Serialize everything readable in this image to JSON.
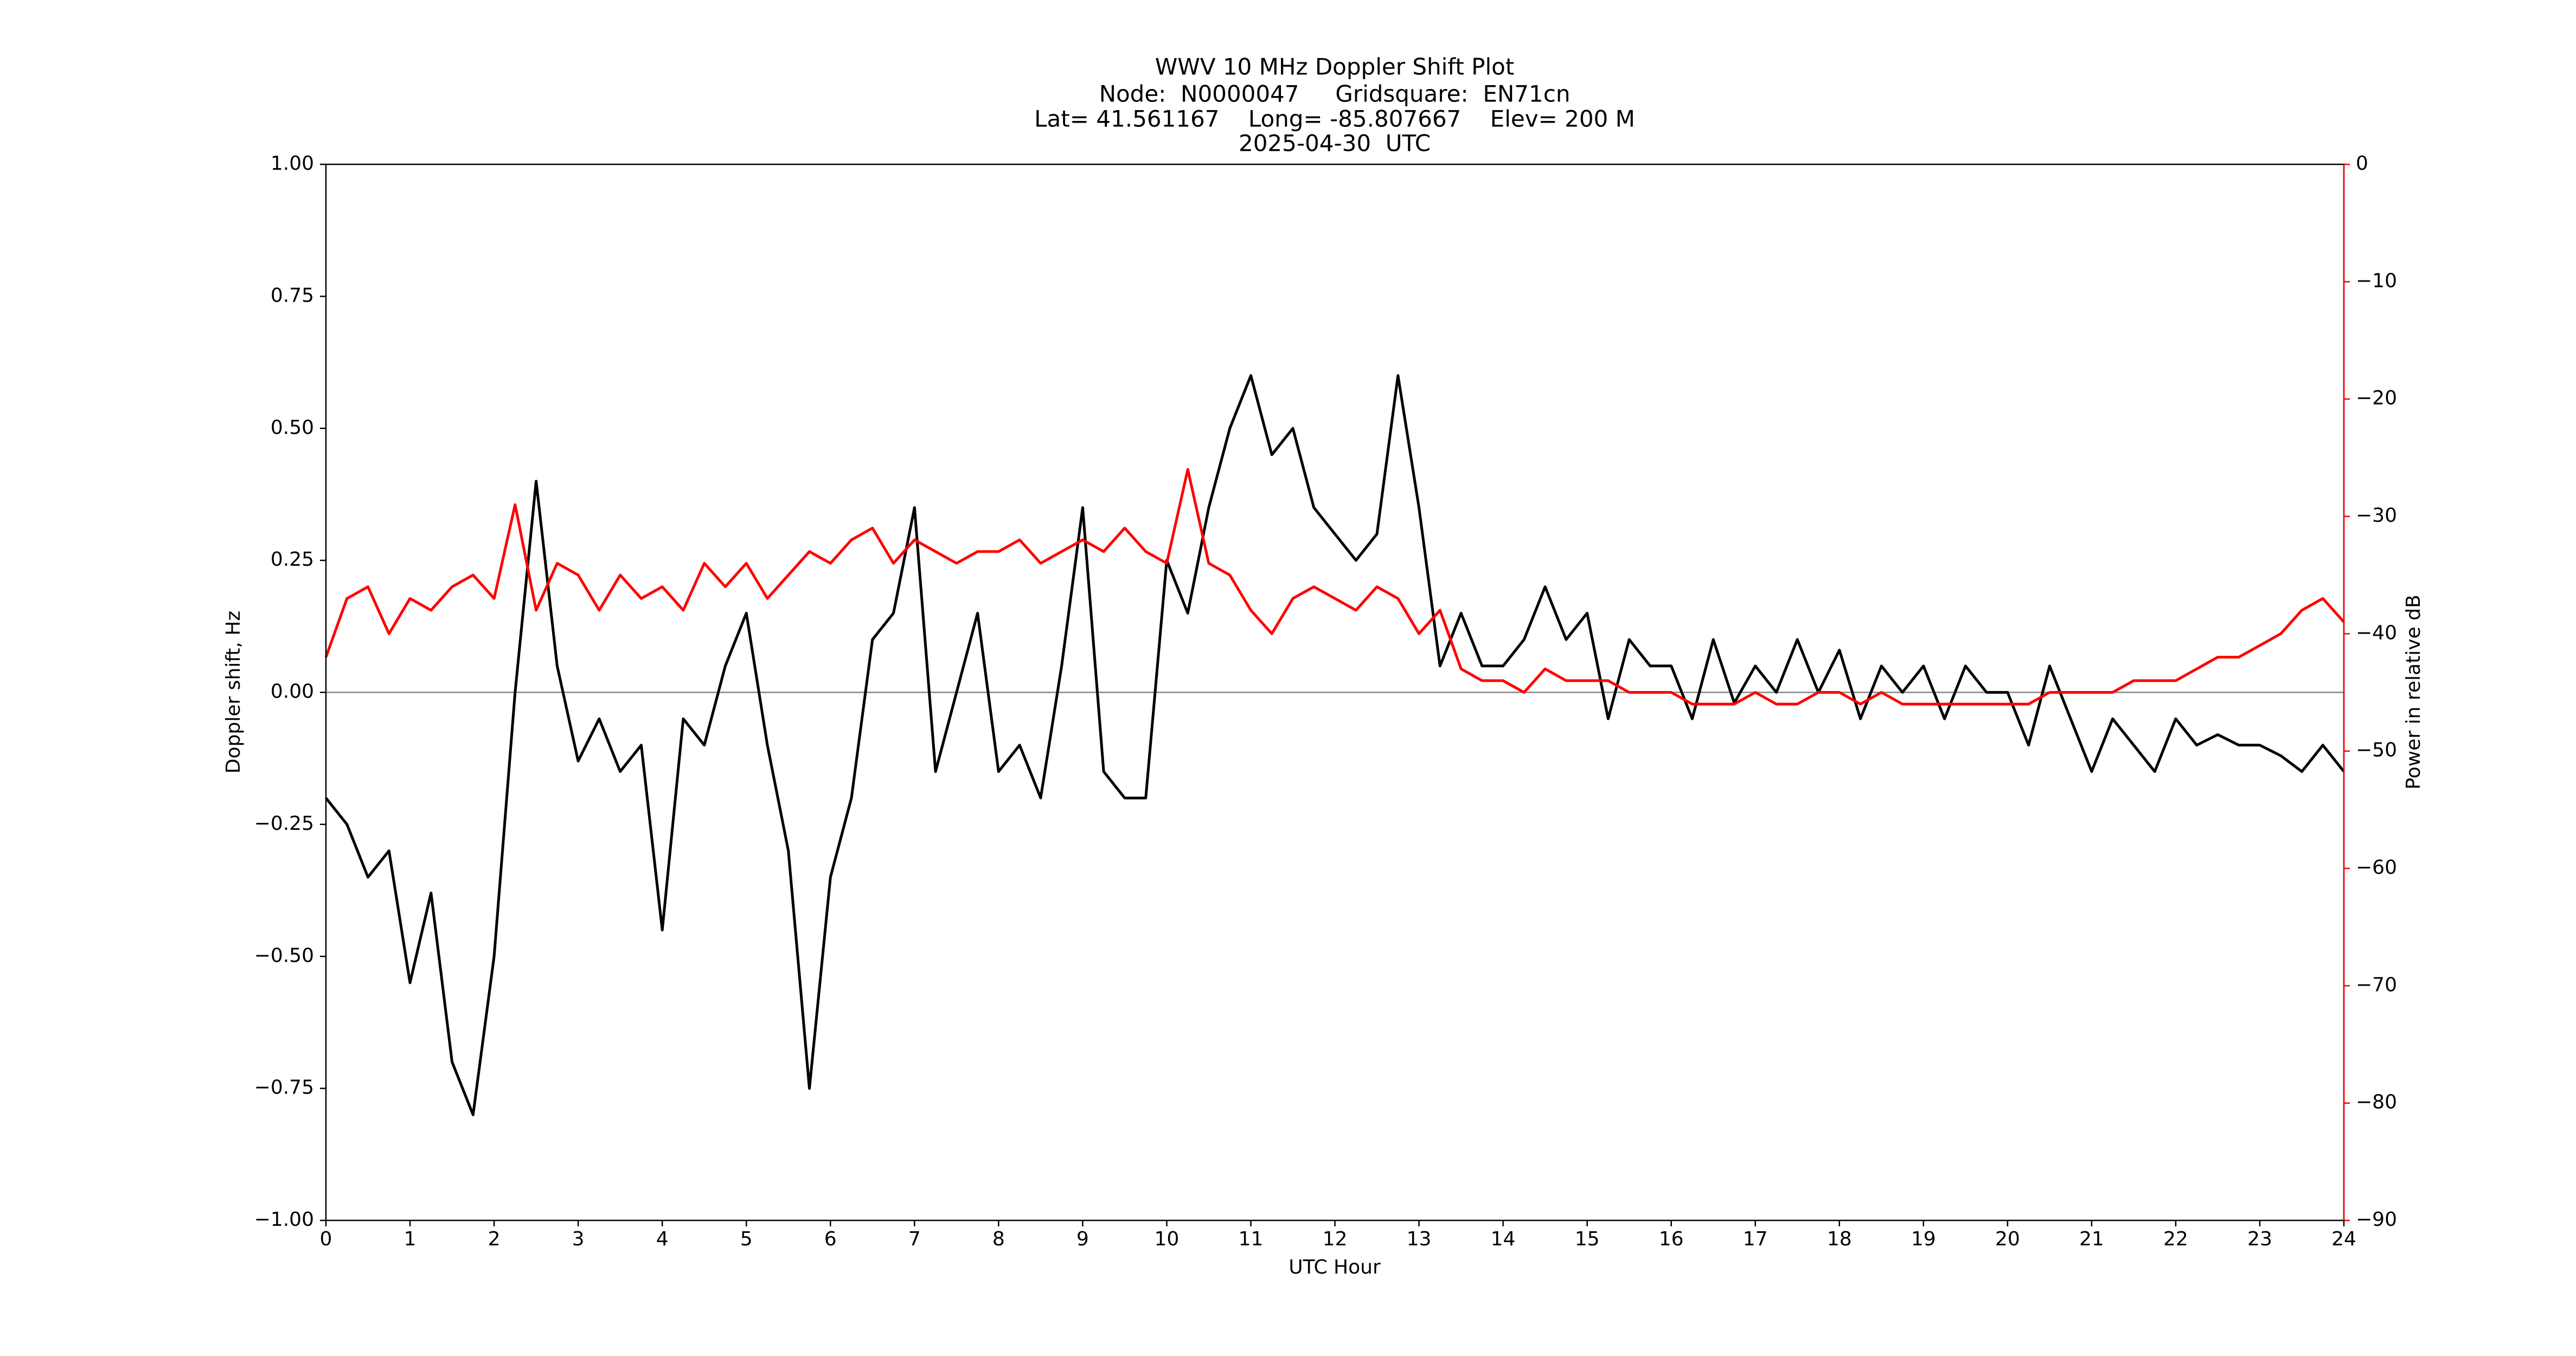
{
  "chart_data": {
    "type": "line",
    "title": "WWV 10 MHz Doppler Shift Plot",
    "subtitle": [
      "Node:  N0000047     Gridsquare:  EN71cn",
      "Lat= 41.561167    Long= -85.807667    Elev= 200 M",
      "2025-04-30  UTC"
    ],
    "x_label": "UTC Hour",
    "y_label": "Doppler shift, Hz",
    "y2_label": "Power in relative dB",
    "y2_color": "#ff0000",
    "x": [
      0,
      0.25,
      0.5,
      0.75,
      1,
      1.25,
      1.5,
      1.75,
      2,
      2.25,
      2.5,
      2.75,
      3,
      3.25,
      3.5,
      3.75,
      4,
      4.25,
      4.5,
      4.75,
      5,
      5.25,
      5.5,
      5.75,
      6,
      6.25,
      6.5,
      6.75,
      7,
      7.25,
      7.5,
      7.75,
      8,
      8.25,
      8.5,
      8.75,
      9,
      9.25,
      9.5,
      9.75,
      10,
      10.25,
      10.5,
      10.75,
      11,
      11.25,
      11.5,
      11.75,
      12,
      12.25,
      12.5,
      12.75,
      13,
      13.25,
      13.5,
      13.75,
      14,
      14.25,
      14.5,
      14.75,
      15,
      15.25,
      15.5,
      15.75,
      16,
      16.25,
      16.5,
      16.75,
      17,
      17.25,
      17.5,
      17.75,
      18,
      18.25,
      18.5,
      18.75,
      19,
      19.25,
      19.5,
      19.75,
      20,
      20.25,
      20.5,
      20.75,
      21,
      21.25,
      21.5,
      21.75,
      22,
      22.25,
      22.5,
      22.75,
      23,
      23.25,
      23.5,
      23.75,
      24
    ],
    "series": [
      {
        "color": "#000000",
        "values": [
          -0.2,
          -0.25,
          -0.35,
          -0.3,
          -0.55,
          -0.38,
          -0.7,
          -0.8,
          -0.5,
          0.0,
          0.4,
          0.05,
          -0.13,
          -0.05,
          -0.15,
          -0.1,
          -0.45,
          -0.05,
          -0.1,
          0.05,
          0.15,
          -0.1,
          -0.3,
          -0.75,
          -0.35,
          -0.2,
          0.1,
          0.15,
          0.35,
          -0.15,
          0.0,
          0.15,
          -0.15,
          -0.1,
          -0.2,
          0.05,
          0.35,
          -0.15,
          -0.2,
          -0.2,
          0.25,
          0.15,
          0.35,
          0.5,
          0.6,
          0.45,
          0.5,
          0.35,
          0.3,
          0.25,
          0.3,
          0.6,
          0.35,
          0.05,
          0.15,
          0.05,
          0.05,
          0.1,
          0.2,
          0.1,
          0.15,
          -0.05,
          0.1,
          0.05,
          0.05,
          -0.05,
          0.1,
          -0.02,
          0.05,
          0.0,
          0.1,
          0.0,
          0.08,
          -0.05,
          0.05,
          0.0,
          0.05,
          -0.05,
          0.05,
          0.0,
          0.0,
          -0.1,
          0.05,
          -0.05,
          -0.15,
          -0.05,
          -0.1,
          -0.15,
          -0.05,
          -0.1,
          -0.08,
          -0.1,
          -0.1,
          -0.12,
          -0.15,
          -0.1,
          -0.15
        ]
      },
      {
        "color": "#ff0000",
        "axis": "y2",
        "values": [
          -42,
          -37,
          -36,
          -40,
          -37,
          -38,
          -36,
          -35,
          -37,
          -29,
          -38,
          -34,
          -35,
          -38,
          -35,
          -37,
          -36,
          -38,
          -34,
          -36,
          -34,
          -37,
          -35,
          -33,
          -34,
          -32,
          -31,
          -34,
          -32,
          -33,
          -34,
          -33,
          -33,
          -32,
          -34,
          -33,
          -32,
          -33,
          -31,
          -33,
          -34,
          -26,
          -34,
          -35,
          -38,
          -40,
          -37,
          -36,
          -37,
          -38,
          -36,
          -37,
          -40,
          -38,
          -43,
          -44,
          -44,
          -45,
          -43,
          -44,
          -44,
          -44,
          -45,
          -45,
          -45,
          -46,
          -46,
          -46,
          -45,
          -46,
          -46,
          -45,
          -45,
          -46,
          -45,
          -46,
          -46,
          -46,
          -46,
          -46,
          -46,
          -46,
          -45,
          -45,
          -45,
          -45,
          -44,
          -44,
          -44,
          -43,
          -42,
          -42,
          -41,
          -40,
          -38,
          -37,
          -39
        ]
      }
    ],
    "hline": 0,
    "hline_color": "#999999",
    "xlim": [
      0,
      24
    ],
    "xticks": [
      0,
      1,
      2,
      3,
      4,
      5,
      6,
      7,
      8,
      9,
      10,
      11,
      12,
      13,
      14,
      15,
      16,
      17,
      18,
      19,
      20,
      21,
      22,
      23,
      24
    ],
    "ylim": [
      -1,
      1
    ],
    "yticks": [
      {
        "value": -1,
        "label": "−1.00"
      },
      {
        "value": -0.75,
        "label": "−0.75"
      },
      {
        "value": -0.5,
        "label": "−0.50"
      },
      {
        "value": -0.25,
        "label": "−0.25"
      },
      {
        "value": 0,
        "label": "0.00"
      },
      {
        "value": 0.25,
        "label": "0.25"
      },
      {
        "value": 0.5,
        "label": "0.50"
      },
      {
        "value": 0.75,
        "label": "0.75"
      },
      {
        "value": 1,
        "label": "1.00"
      }
    ],
    "y2lim": [
      -90,
      0
    ],
    "y2ticks": [
      {
        "value": -90,
        "label": "−90"
      },
      {
        "value": -80,
        "label": "−80"
      },
      {
        "value": -70,
        "label": "−70"
      },
      {
        "value": -60,
        "label": "−60"
      },
      {
        "value": -50,
        "label": "−50"
      },
      {
        "value": -40,
        "label": "−40"
      },
      {
        "value": -30,
        "label": "−30"
      },
      {
        "value": -20,
        "label": "−20"
      },
      {
        "value": -10,
        "label": "−10"
      },
      0
    ],
    "grid": false
  }
}
